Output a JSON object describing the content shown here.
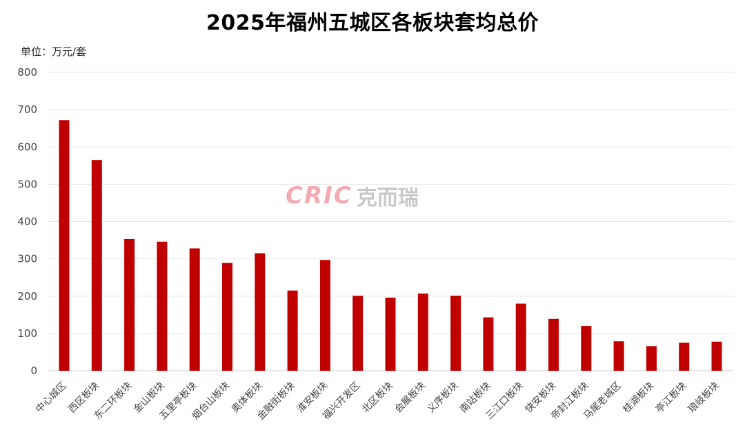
{
  "chart_data": {
    "type": "bar",
    "title": "2025年福州五城区各板块套均总价",
    "unit_label": "单位：万元/套",
    "xlabel": "",
    "ylabel": "",
    "ylim": [
      0,
      800
    ],
    "yticks": [
      0,
      100,
      200,
      300,
      400,
      500,
      600,
      700,
      800
    ],
    "grid": true,
    "bar_color": "#c00000",
    "categories": [
      "中心城区",
      "西区板块",
      "东二环板块",
      "金山板块",
      "五里亭板块",
      "烟台山板块",
      "奥体板块",
      "金融街板块",
      "淮安板块",
      "福兴开发区",
      "北区板块",
      "会展板块",
      "义序板块",
      "南站板块",
      "三江口板块",
      "快安板块",
      "帝封江板块",
      "马尾老城区",
      "桂湖板块",
      "亭江板块",
      "琅岐板块"
    ],
    "values": [
      672,
      565,
      353,
      346,
      328,
      289,
      315,
      215,
      297,
      201,
      196,
      207,
      201,
      143,
      180,
      139,
      120,
      79,
      66,
      75,
      78
    ]
  },
  "watermark": {
    "logo_text": "CRIC",
    "cn_text": "克而瑞"
  }
}
